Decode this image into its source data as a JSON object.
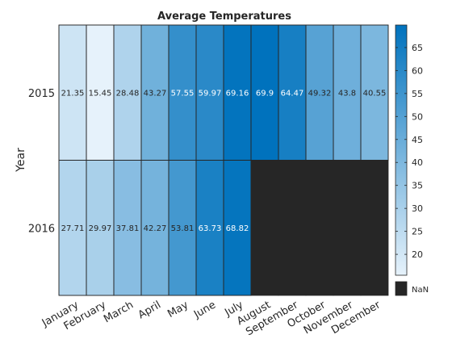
{
  "chart_data": {
    "type": "heatmap",
    "title": "Average Temperatures",
    "ylabel": "Year",
    "xlabel": "",
    "x": [
      "January",
      "February",
      "March",
      "April",
      "May",
      "June",
      "July",
      "August",
      "September",
      "October",
      "November",
      "December"
    ],
    "y": [
      "2015",
      "2016"
    ],
    "values": [
      [
        21.35,
        15.45,
        28.48,
        43.27,
        57.55,
        59.97,
        69.16,
        69.9,
        64.47,
        49.32,
        43.8,
        40.55
      ],
      [
        27.71,
        29.97,
        37.81,
        42.27,
        53.81,
        63.73,
        68.82,
        null,
        null,
        null,
        null,
        null
      ]
    ],
    "value_labels": [
      [
        "21.35",
        "15.45",
        "28.48",
        "43.27",
        "57.55",
        "59.97",
        "69.16",
        "69.9",
        "64.47",
        "49.32",
        "43.8",
        "40.55"
      ],
      [
        "27.71",
        "29.97",
        "37.81",
        "42.27",
        "53.81",
        "63.73",
        "68.82",
        "",
        "",
        "",
        "",
        ""
      ]
    ],
    "colorbar": {
      "range": [
        15.45,
        69.9
      ],
      "ticks": [
        20,
        25,
        30,
        35,
        40,
        45,
        50,
        55,
        60,
        65
      ],
      "tick_labels": [
        "20",
        "25",
        "30",
        "35",
        "40",
        "45",
        "50",
        "55",
        "60",
        "65"
      ],
      "colors": [
        "#e6f2fb",
        "#0072bd"
      ],
      "nan_label": "NaN",
      "nan_color": "#262626"
    }
  }
}
